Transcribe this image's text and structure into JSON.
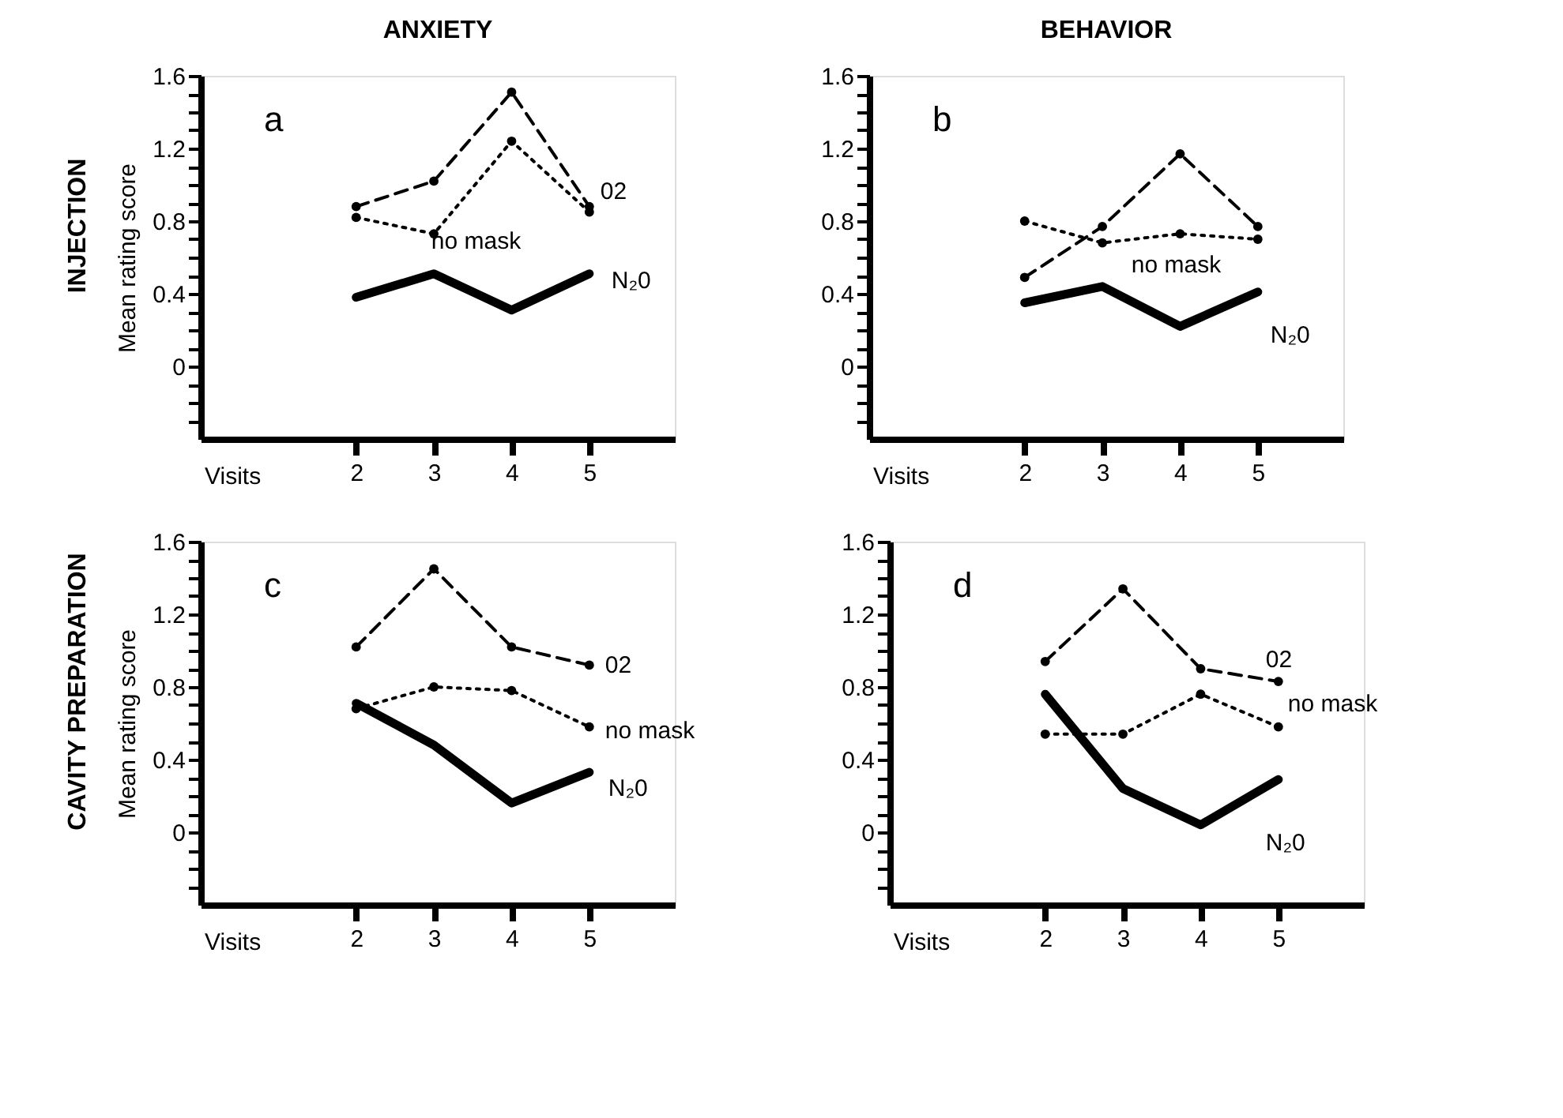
{
  "chart_data": [
    {
      "type": "line",
      "title": "ANXIETY",
      "ylabel": "Mean rating score",
      "xlabel": "Visits",
      "annotations": [
        "a",
        "INJECTION"
      ],
      "x": [
        2,
        3,
        4,
        5
      ],
      "xlim": [
        0,
        6.1
      ],
      "xticks": [
        2,
        3,
        4,
        5
      ],
      "ylim": [
        -0.4,
        1.6
      ],
      "yticks": [
        {
          "value": -0.3,
          "label": null
        },
        {
          "value": -0.2,
          "label": null
        },
        {
          "value": -0.1,
          "label": null
        },
        0,
        {
          "value": 0.1,
          "label": null
        },
        {
          "value": 0.2,
          "label": null
        },
        {
          "value": 0.3,
          "label": null
        },
        0.4,
        {
          "value": 0.5,
          "label": null
        },
        {
          "value": 0.6,
          "label": null
        },
        {
          "value": 0.7,
          "label": null
        },
        0.8,
        {
          "value": 0.9,
          "label": null
        },
        {
          "value": 1.0,
          "label": null
        },
        {
          "value": 1.1,
          "label": null
        },
        1.2,
        {
          "value": 1.3,
          "label": null
        },
        {
          "value": 1.4,
          "label": null
        },
        {
          "value": 1.5,
          "label": null
        },
        1.6
      ],
      "grid": false,
      "series": [
        {
          "name": "02",
          "color": "#000000",
          "line_style": "dashed",
          "marker": "circle",
          "values": [
            0.88,
            1.02,
            1.51,
            0.88
          ]
        },
        {
          "name": "no mask",
          "color": "#000000",
          "line_style": "dotted",
          "marker": "circle",
          "values": [
            0.82,
            0.73,
            1.24,
            0.85
          ]
        },
        {
          "name": "N₂0",
          "color": "#000000",
          "line_style": "solid",
          "marker": "none",
          "values": [
            0.38,
            0.51,
            0.31,
            0.51
          ]
        }
      ]
    },
    {
      "type": "line",
      "title": "BEHAVIOR",
      "xlabel": "Visits",
      "annotations": [
        "b"
      ],
      "x": [
        2,
        3,
        4,
        5
      ],
      "xlim": [
        0,
        6.1
      ],
      "xticks": [
        2,
        3,
        4,
        5
      ],
      "ylim": [
        -0.4,
        1.6
      ],
      "yticks": [
        {
          "value": -0.3,
          "label": null
        },
        {
          "value": -0.2,
          "label": null
        },
        {
          "value": -0.1,
          "label": null
        },
        0,
        {
          "value": 0.1,
          "label": null
        },
        {
          "value": 0.2,
          "label": null
        },
        {
          "value": 0.3,
          "label": null
        },
        0.4,
        {
          "value": 0.5,
          "label": null
        },
        {
          "value": 0.6,
          "label": null
        },
        {
          "value": 0.7,
          "label": null
        },
        0.8,
        {
          "value": 0.9,
          "label": null
        },
        {
          "value": 1.0,
          "label": null
        },
        {
          "value": 1.1,
          "label": null
        },
        1.2,
        {
          "value": 1.3,
          "label": null
        },
        {
          "value": 1.4,
          "label": null
        },
        {
          "value": 1.5,
          "label": null
        },
        1.6
      ],
      "grid": false,
      "series": [
        {
          "color": "#000000",
          "line_style": "dashed",
          "marker": "circle",
          "values": [
            0.49,
            0.77,
            1.17,
            0.77
          ]
        },
        {
          "name": "no mask",
          "color": "#000000",
          "line_style": "dotted",
          "marker": "circle",
          "values": [
            0.8,
            0.68,
            0.73,
            0.7
          ]
        },
        {
          "name": "N₂0",
          "color": "#000000",
          "line_style": "solid",
          "marker": "none",
          "values": [
            0.35,
            0.44,
            0.22,
            0.41
          ]
        }
      ]
    },
    {
      "type": "line",
      "ylabel": "Mean rating score",
      "xlabel": "Visits",
      "annotations": [
        "c",
        "CAVITY PREPARATION"
      ],
      "x": [
        2,
        3,
        4,
        5
      ],
      "xlim": [
        0,
        6.1
      ],
      "xticks": [
        2,
        3,
        4,
        5
      ],
      "ylim": [
        -0.4,
        1.6
      ],
      "yticks": [
        {
          "value": -0.3,
          "label": null
        },
        {
          "value": -0.2,
          "label": null
        },
        {
          "value": -0.1,
          "label": null
        },
        0,
        {
          "value": 0.1,
          "label": null
        },
        {
          "value": 0.2,
          "label": null
        },
        {
          "value": 0.3,
          "label": null
        },
        0.4,
        {
          "value": 0.5,
          "label": null
        },
        {
          "value": 0.6,
          "label": null
        },
        {
          "value": 0.7,
          "label": null
        },
        0.8,
        {
          "value": 0.9,
          "label": null
        },
        {
          "value": 1.0,
          "label": null
        },
        {
          "value": 1.1,
          "label": null
        },
        1.2,
        {
          "value": 1.3,
          "label": null
        },
        {
          "value": 1.4,
          "label": null
        },
        {
          "value": 1.5,
          "label": null
        },
        1.6
      ],
      "grid": false,
      "series": [
        {
          "name": "02",
          "color": "#000000",
          "line_style": "dashed",
          "marker": "circle",
          "values": [
            1.02,
            1.45,
            1.02,
            0.92
          ]
        },
        {
          "name": "no mask",
          "color": "#000000",
          "line_style": "dotted",
          "marker": "circle",
          "values": [
            0.68,
            0.8,
            0.78,
            0.58
          ]
        },
        {
          "name": "N₂0",
          "color": "#000000",
          "line_style": "solid",
          "marker": "none",
          "values": [
            0.71,
            0.48,
            0.16,
            0.33
          ]
        }
      ]
    },
    {
      "type": "line",
      "xlabel": "Visits",
      "annotations": [
        "d"
      ],
      "x": [
        2,
        3,
        4,
        5
      ],
      "xlim": [
        0,
        6.1
      ],
      "xticks": [
        2,
        3,
        4,
        5
      ],
      "ylim": [
        -0.4,
        1.6
      ],
      "yticks": [
        {
          "value": -0.3,
          "label": null
        },
        {
          "value": -0.2,
          "label": null
        },
        {
          "value": -0.1,
          "label": null
        },
        0,
        {
          "value": 0.1,
          "label": null
        },
        {
          "value": 0.2,
          "label": null
        },
        {
          "value": 0.3,
          "label": null
        },
        0.4,
        {
          "value": 0.5,
          "label": null
        },
        {
          "value": 0.6,
          "label": null
        },
        {
          "value": 0.7,
          "label": null
        },
        0.8,
        {
          "value": 0.9,
          "label": null
        },
        {
          "value": 1.0,
          "label": null
        },
        {
          "value": 1.1,
          "label": null
        },
        1.2,
        {
          "value": 1.3,
          "label": null
        },
        {
          "value": 1.4,
          "label": null
        },
        {
          "value": 1.5,
          "label": null
        },
        1.6
      ],
      "grid": false,
      "series": [
        {
          "name": "02",
          "color": "#000000",
          "line_style": "dashed",
          "marker": "circle",
          "values": [
            0.94,
            1.34,
            0.9,
            0.83
          ]
        },
        {
          "name": "no mask",
          "color": "#000000",
          "line_style": "dotted",
          "marker": "circle",
          "values": [
            0.54,
            0.54,
            0.76,
            0.58
          ]
        },
        {
          "name": "N₂0",
          "color": "#000000",
          "line_style": "solid",
          "marker": "none",
          "values": [
            0.76,
            0.24,
            0.04,
            0.29
          ]
        }
      ]
    }
  ]
}
